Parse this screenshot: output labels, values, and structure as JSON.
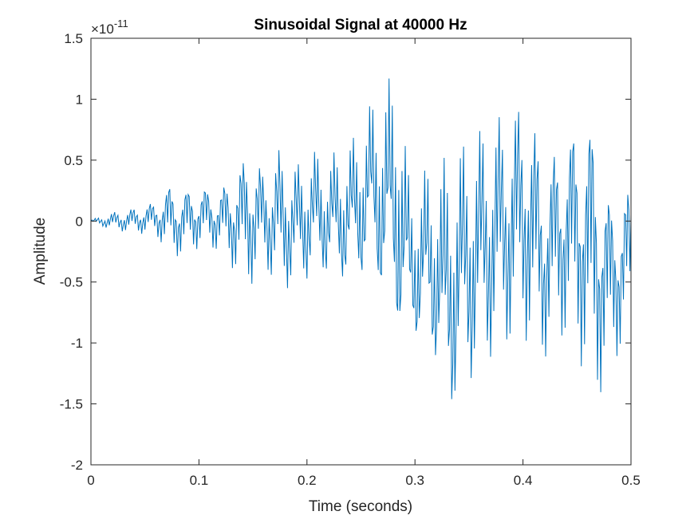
{
  "chart_data": {
    "type": "line",
    "title": "Sinusoidal Signal at 40000 Hz",
    "xlabel": "Time (seconds)",
    "ylabel": "Amplitude",
    "y_exponent_base": "×10",
    "y_exponent": "-11",
    "xlim": [
      0,
      0.5
    ],
    "ylim": [
      -2,
      1.5
    ],
    "xticks": [
      0,
      0.1,
      0.2,
      0.3,
      0.4,
      0.5
    ],
    "xtick_labels": [
      "0",
      "0.1",
      "0.2",
      "0.3",
      "0.4",
      "0.5"
    ],
    "yticks": [
      -2,
      -1.5,
      -1,
      -0.5,
      0,
      0.5,
      1,
      1.5
    ],
    "ytick_labels": [
      "-2",
      "-1.5",
      "-1",
      "-0.5",
      "0",
      "0.5",
      "1",
      "1.5"
    ],
    "grid": false,
    "line_color": "#0072BD",
    "series": [
      {
        "x_start": 0,
        "x_step": 0.001,
        "note_units": "y values in units of 1e-11",
        "values": [
          0.0,
          0.0,
          0.0,
          0.01,
          -0.01,
          0.03,
          0.04,
          -0.02,
          0.05,
          0.02,
          -0.04,
          0.06,
          0.02,
          -0.03,
          0.08,
          0.03,
          -0.05,
          0.09,
          0.01,
          -0.06,
          0.11,
          0.02,
          -0.07,
          0.12,
          0.04,
          -0.08,
          0.13,
          0.05,
          -0.09,
          0.15,
          0.04,
          -0.1,
          0.16,
          0.06,
          -0.11,
          0.17,
          0.06,
          -0.11,
          0.18,
          0.07,
          -0.12,
          0.19,
          0.07,
          -0.13,
          0.2,
          0.08,
          -0.14,
          0.21,
          0.08,
          -0.15,
          0.21,
          0.09,
          -0.16,
          0.22,
          0.09,
          -0.17,
          0.23,
          0.09,
          -0.17,
          0.24,
          0.1,
          -0.18,
          0.26,
          0.11,
          -0.19,
          0.27,
          0.11,
          -0.19,
          0.28,
          0.12,
          -0.2,
          0.29,
          0.12,
          -0.21,
          0.3,
          0.12,
          -0.22,
          0.31,
          0.13,
          -0.22,
          0.32,
          0.13,
          -0.23,
          0.33,
          0.14,
          -0.24,
          0.34,
          0.14,
          -0.25,
          0.35,
          0.15,
          -0.25,
          0.36,
          0.15,
          -0.26,
          0.37,
          0.16,
          -0.27,
          0.38,
          0.16,
          -0.28,
          0.39,
          0.17,
          -0.28,
          0.4,
          0.17,
          -0.29,
          0.41,
          0.18,
          -0.3,
          0.42,
          0.18,
          -0.31,
          0.43,
          0.19,
          -0.31,
          0.44,
          0.19,
          -0.32,
          0.45,
          0.2,
          -0.33,
          0.46,
          0.2,
          -0.34,
          0.47,
          0.21,
          -0.34,
          0.48,
          0.21,
          -0.35,
          0.49,
          0.22,
          -0.36,
          0.5,
          0.22,
          -0.37,
          0.51,
          0.23,
          -0.37,
          0.52,
          0.23,
          -0.38,
          0.53,
          0.24,
          -0.39,
          0.54,
          0.24,
          -0.4,
          0.55,
          0.25,
          -0.4,
          0.56,
          0.25,
          -0.41,
          0.57,
          0.26,
          -0.42,
          0.58,
          0.26,
          -0.43,
          0.59,
          0.27,
          -0.43,
          0.6,
          0.27,
          -0.44,
          0.61,
          0.28,
          -0.45,
          0.62,
          0.28,
          -0.46,
          0.63,
          0.29,
          -0.46,
          0.64,
          0.29,
          -0.47,
          0.65,
          0.3,
          -0.48,
          0.66,
          0.3,
          -0.49,
          0.67,
          0.31,
          -0.49,
          0.68,
          0.31,
          -0.5,
          0.69,
          0.32,
          -0.51,
          0.7,
          0.32,
          -0.52,
          0.71,
          0.33,
          -0.52,
          0.72,
          0.33,
          -0.53,
          0.73,
          0.34,
          -0.54,
          0.74,
          0.34,
          -0.55,
          0.75,
          0.35,
          -0.55,
          0.76,
          0.35,
          -0.56,
          0.77,
          0.36,
          -0.57,
          0.78,
          0.36,
          -0.58,
          0.79,
          0.37,
          -0.58,
          0.8,
          0.37,
          -0.59,
          0.81,
          0.38,
          -0.6,
          0.82,
          0.38,
          -0.61,
          0.83,
          0.39,
          -0.61,
          0.84,
          0.39,
          -0.62,
          0.85,
          0.4,
          -0.63,
          0.86,
          0.4,
          -0.64,
          0.87,
          0.41,
          -0.64,
          0.88,
          0.41,
          -0.65,
          0.89,
          0.42,
          -0.66,
          0.9,
          0.42,
          -0.67,
          0.91,
          0.43,
          -0.67,
          0.92,
          0.43,
          -0.68,
          0.93,
          0.44,
          -0.69,
          0.94,
          0.44,
          -0.7,
          0.95,
          0.45,
          -0.7,
          0.96,
          0.45,
          -0.71,
          0.97,
          0.46,
          -0.72,
          0.98,
          0.46,
          -0.73,
          0.99,
          0.47,
          -0.73,
          1.0
        ]
      }
    ],
    "envelope_points": [
      [
        0.0,
        0.01
      ],
      [
        0.02,
        0.08
      ],
      [
        0.04,
        0.12
      ],
      [
        0.06,
        0.18
      ],
      [
        0.072,
        0.34
      ],
      [
        0.085,
        0.3
      ],
      [
        0.1,
        0.32
      ],
      [
        0.12,
        0.3
      ],
      [
        0.14,
        0.55
      ],
      [
        0.145,
        0.68
      ],
      [
        0.16,
        0.45
      ],
      [
        0.174,
        0.64
      ],
      [
        0.19,
        0.5
      ],
      [
        0.205,
        0.62
      ],
      [
        0.22,
        0.55
      ],
      [
        0.24,
        0.66
      ],
      [
        0.26,
        1.0
      ],
      [
        0.275,
        1.15
      ],
      [
        0.285,
        1.35
      ],
      [
        0.295,
        0.3
      ],
      [
        0.31,
        0.45
      ],
      [
        0.322,
        0.5
      ],
      [
        0.34,
        0.65
      ],
      [
        0.36,
        0.82
      ],
      [
        0.38,
        0.95
      ],
      [
        0.4,
        1.08
      ],
      [
        0.403,
        1.18
      ],
      [
        0.42,
        0.55
      ],
      [
        0.44,
        0.85
      ],
      [
        0.46,
        1.0
      ],
      [
        0.465,
        1.0
      ],
      [
        0.48,
        0.3
      ],
      [
        0.5,
        0.35
      ]
    ],
    "envelope_lows": [
      [
        0.0,
        -0.01
      ],
      [
        0.02,
        -0.08
      ],
      [
        0.04,
        -0.1
      ],
      [
        0.06,
        -0.12
      ],
      [
        0.072,
        -0.28
      ],
      [
        0.085,
        -0.3
      ],
      [
        0.1,
        -0.22
      ],
      [
        0.12,
        -0.25
      ],
      [
        0.145,
        -0.58
      ],
      [
        0.16,
        -0.4
      ],
      [
        0.176,
        -0.62
      ],
      [
        0.19,
        -0.56
      ],
      [
        0.215,
        -0.48
      ],
      [
        0.24,
        -0.58
      ],
      [
        0.26,
        -0.52
      ],
      [
        0.288,
        -1.18
      ],
      [
        0.3,
        -1.05
      ],
      [
        0.322,
        -1.3
      ],
      [
        0.327,
        -1.83
      ],
      [
        0.34,
        -1.58
      ],
      [
        0.36,
        -1.3
      ],
      [
        0.38,
        -1.12
      ],
      [
        0.4,
        -0.98
      ],
      [
        0.415,
        -1.2
      ],
      [
        0.44,
        -0.95
      ],
      [
        0.46,
        -1.3
      ],
      [
        0.465,
        -1.53
      ],
      [
        0.48,
        -1.3
      ],
      [
        0.5,
        -0.85
      ]
    ]
  }
}
